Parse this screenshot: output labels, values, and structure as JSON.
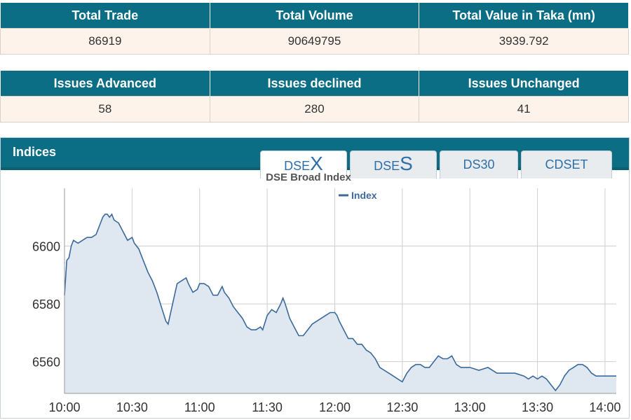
{
  "summary_table_1": {
    "headers": [
      "Total Trade",
      "Total Volume",
      "Total Value in Taka (mn)"
    ],
    "values": [
      "86919",
      "90649795",
      "3939.792"
    ]
  },
  "summary_table_2": {
    "headers": [
      "Issues Advanced",
      "Issues declined",
      "Issues Unchanged"
    ],
    "values": [
      "58",
      "280",
      "41"
    ]
  },
  "indices": {
    "title": "Indices",
    "tabs": [
      {
        "prefix": "DSE",
        "suffix": "X"
      },
      {
        "prefix": "DSE",
        "suffix": "S"
      },
      {
        "label": "DS30"
      },
      {
        "label": "CDSET"
      }
    ],
    "active_tab": "DSEX"
  },
  "colors": {
    "header": "#0b6e84",
    "line": "#3b6a9a",
    "area": "#dfe7f0"
  },
  "chart_data": {
    "type": "area",
    "title": "DSE Broad Index",
    "legend": "Index",
    "legend_position": "top",
    "xlabel": "",
    "ylabel": "",
    "x_ticks": [
      "10:00",
      "10:30",
      "11:00",
      "11:30",
      "12:00",
      "12:30",
      "13:00",
      "13:30",
      "14:00"
    ],
    "y_ticks": [
      6560,
      6580,
      6600
    ],
    "xlim": [
      "10:00",
      "14:05"
    ],
    "ylim": [
      6549,
      6620
    ],
    "grid": true,
    "series": [
      {
        "name": "Index",
        "points": [
          [
            "10:00",
            6583
          ],
          [
            "10:01",
            6595
          ],
          [
            "10:02",
            6596
          ],
          [
            "10:03",
            6600
          ],
          [
            "10:04",
            6602
          ],
          [
            "10:06",
            6601
          ],
          [
            "10:08",
            6602
          ],
          [
            "10:10",
            6603
          ],
          [
            "10:12",
            6603
          ],
          [
            "10:14",
            6604
          ],
          [
            "10:15",
            6606
          ],
          [
            "10:16",
            6608
          ],
          [
            "10:17",
            6610
          ],
          [
            "10:18",
            6611
          ],
          [
            "10:19",
            6611
          ],
          [
            "10:20",
            6610
          ],
          [
            "10:21",
            6611
          ],
          [
            "10:22",
            6609
          ],
          [
            "10:24",
            6608
          ],
          [
            "10:26",
            6605
          ],
          [
            "10:28",
            6602
          ],
          [
            "10:30",
            6603
          ],
          [
            "10:31",
            6601
          ],
          [
            "10:33",
            6599
          ],
          [
            "10:35",
            6595
          ],
          [
            "10:37",
            6591
          ],
          [
            "10:39",
            6588
          ],
          [
            "10:41",
            6584
          ],
          [
            "10:43",
            6579
          ],
          [
            "10:45",
            6574
          ],
          [
            "10:46",
            6573
          ],
          [
            "10:48",
            6580
          ],
          [
            "10:50",
            6587
          ],
          [
            "10:52",
            6588
          ],
          [
            "10:54",
            6589
          ],
          [
            "10:55",
            6587
          ],
          [
            "10:57",
            6584
          ],
          [
            "10:59",
            6585
          ],
          [
            "11:00",
            6587
          ],
          [
            "11:02",
            6587
          ],
          [
            "11:04",
            6586
          ],
          [
            "11:06",
            6583
          ],
          [
            "11:08",
            6583
          ],
          [
            "11:10",
            6586
          ],
          [
            "11:11",
            6584
          ],
          [
            "11:13",
            6582
          ],
          [
            "11:15",
            6579
          ],
          [
            "11:17",
            6577
          ],
          [
            "11:19",
            6575
          ],
          [
            "11:21",
            6572
          ],
          [
            "11:23",
            6571
          ],
          [
            "11:25",
            6571
          ],
          [
            "11:27",
            6572
          ],
          [
            "11:28",
            6571
          ],
          [
            "11:30",
            6576
          ],
          [
            "11:32",
            6578
          ],
          [
            "11:34",
            6577
          ],
          [
            "11:36",
            6580
          ],
          [
            "11:37",
            6582
          ],
          [
            "11:38",
            6580
          ],
          [
            "11:40",
            6575
          ],
          [
            "11:42",
            6572
          ],
          [
            "11:44",
            6569
          ],
          [
            "11:46",
            6569
          ],
          [
            "11:48",
            6571
          ],
          [
            "11:50",
            6573
          ],
          [
            "11:52",
            6574
          ],
          [
            "11:54",
            6575
          ],
          [
            "11:56",
            6576
          ],
          [
            "11:58",
            6577
          ],
          [
            "12:00",
            6577
          ],
          [
            "12:01",
            6576
          ],
          [
            "12:02",
            6574
          ],
          [
            "12:04",
            6571
          ],
          [
            "12:06",
            6568
          ],
          [
            "12:08",
            6568
          ],
          [
            "12:10",
            6566
          ],
          [
            "12:12",
            6566
          ],
          [
            "12:14",
            6564
          ],
          [
            "12:16",
            6563
          ],
          [
            "12:18",
            6561
          ],
          [
            "12:20",
            6558
          ],
          [
            "12:22",
            6557
          ],
          [
            "12:24",
            6556
          ],
          [
            "12:26",
            6555
          ],
          [
            "12:28",
            6554
          ],
          [
            "12:30",
            6553
          ],
          [
            "12:32",
            6556
          ],
          [
            "12:34",
            6558
          ],
          [
            "12:36",
            6559
          ],
          [
            "12:38",
            6559
          ],
          [
            "12:40",
            6558
          ],
          [
            "12:42",
            6558
          ],
          [
            "12:44",
            6560
          ],
          [
            "12:46",
            6562
          ],
          [
            "12:48",
            6561
          ],
          [
            "12:50",
            6561
          ],
          [
            "12:52",
            6562
          ],
          [
            "12:54",
            6559
          ],
          [
            "12:56",
            6558
          ],
          [
            "13:00",
            6558
          ],
          [
            "13:04",
            6557
          ],
          [
            "13:08",
            6558
          ],
          [
            "13:12",
            6556
          ],
          [
            "13:16",
            6556
          ],
          [
            "13:20",
            6556
          ],
          [
            "13:24",
            6555
          ],
          [
            "13:26",
            6554
          ],
          [
            "13:28",
            6555
          ],
          [
            "13:30",
            6554
          ],
          [
            "13:32",
            6555
          ],
          [
            "13:34",
            6554
          ],
          [
            "13:36",
            6552
          ],
          [
            "13:38",
            6550
          ],
          [
            "13:40",
            6552
          ],
          [
            "13:42",
            6555
          ],
          [
            "13:44",
            6557
          ],
          [
            "13:46",
            6558
          ],
          [
            "13:48",
            6559
          ],
          [
            "13:50",
            6559
          ],
          [
            "13:52",
            6558
          ],
          [
            "13:54",
            6556
          ],
          [
            "13:56",
            6555
          ],
          [
            "14:00",
            6555
          ],
          [
            "14:05",
            6555
          ]
        ]
      }
    ]
  }
}
